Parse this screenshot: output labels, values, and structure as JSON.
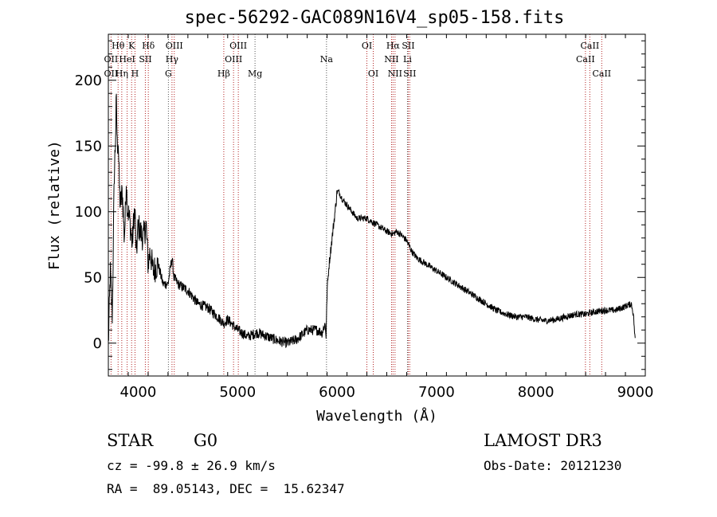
{
  "chart_data": {
    "type": "line",
    "title": "spec-56292-GAC089N16V4_sp05-158.fits",
    "xlabel": "Wavelength (Å)",
    "ylabel": "Flux (relative)",
    "xlim": [
      3700,
      9100
    ],
    "ylim": [
      -25,
      235
    ],
    "xticks": [
      4000,
      5000,
      6000,
      7000,
      8000,
      9000
    ],
    "yticks": [
      0,
      50,
      100,
      150,
      200
    ],
    "series": [
      {
        "name": "flux",
        "x": [
          3700,
          3720,
          3740,
          3760,
          3770,
          3780,
          3790,
          3800,
          3810,
          3820,
          3830,
          3840,
          3850,
          3860,
          3870,
          3880,
          3890,
          3900,
          3920,
          3940,
          3960,
          3970,
          3980,
          4000,
          4020,
          4050,
          4080,
          4100,
          4120,
          4150,
          4200,
          4250,
          4300,
          4340,
          4360,
          4400,
          4500,
          4600,
          4700,
          4800,
          4860,
          4900,
          5000,
          5100,
          5200,
          5300,
          5400,
          5500,
          5600,
          5700,
          5800,
          5850,
          5880,
          5890,
          5900,
          5910,
          5920,
          5950,
          5980,
          6000,
          6020,
          6050,
          6100,
          6150,
          6200,
          6300,
          6400,
          6500,
          6563,
          6600,
          6650,
          6700,
          6720,
          6750,
          6800,
          6900,
          7000,
          7100,
          7200,
          7300,
          7400,
          7500,
          7600,
          7700,
          7800,
          7900,
          8000,
          8100,
          8200,
          8300,
          8400,
          8500,
          8600,
          8700,
          8800,
          8900,
          8960,
          8980,
          9000
        ],
        "y": [
          -2,
          55,
          20,
          130,
          150,
          185,
          150,
          155,
          120,
          105,
          110,
          115,
          100,
          80,
          95,
          125,
          105,
          100,
          90,
          75,
          100,
          95,
          65,
          90,
          85,
          80,
          90,
          60,
          70,
          55,
          60,
          45,
          45,
          65,
          50,
          45,
          40,
          30,
          27,
          20,
          15,
          18,
          10,
          5,
          8,
          5,
          2,
          0,
          3,
          10,
          10,
          8,
          15,
          5,
          40,
          50,
          60,
          80,
          100,
          115,
          115,
          110,
          105,
          100,
          95,
          95,
          90,
          85,
          83,
          85,
          82,
          78,
          75,
          70,
          65,
          60,
          55,
          50,
          45,
          40,
          35,
          30,
          25,
          22,
          20,
          20,
          18,
          17,
          18,
          20,
          22,
          22,
          24,
          25,
          25,
          28,
          30,
          22,
          0
        ]
      }
    ],
    "lines_red": [
      {
        "label": "OII",
        "x": 3727
      },
      {
        "label": "Hθ",
        "x": 3798
      },
      {
        "label": "Hη",
        "x": 3835
      },
      {
        "label": "HeI",
        "x": 3889
      },
      {
        "label": "K",
        "x": 3934
      },
      {
        "label": "H",
        "x": 3968
      },
      {
        "label": "SII",
        "x": 4072
      },
      {
        "label": "Hδ",
        "x": 4102
      },
      {
        "label": "Hγ",
        "x": 4340
      },
      {
        "label": "OIII",
        "x": 4363
      },
      {
        "label": "Hβ",
        "x": 4861
      },
      {
        "label": "OIII",
        "x": 4959
      },
      {
        "label": "OIII",
        "x": 5007
      },
      {
        "label": "OI",
        "x": 6300
      },
      {
        "label": "OI",
        "x": 6364
      },
      {
        "label": "NII",
        "x": 6548
      },
      {
        "label": "Hα",
        "x": 6563
      },
      {
        "label": "NII",
        "x": 6583
      },
      {
        "label": "SII",
        "x": 6716
      },
      {
        "label": "SII",
        "x": 6731
      },
      {
        "label": "CaII",
        "x": 8498
      },
      {
        "label": "CaII",
        "x": 8542
      },
      {
        "label": "CaII",
        "x": 8662
      }
    ],
    "lines_black": [
      {
        "label": "G",
        "x": 4304
      },
      {
        "label": "Mg",
        "x": 5175
      },
      {
        "label": "Na",
        "x": 5894
      },
      {
        "label": "Li",
        "x": 6708
      }
    ],
    "annotations": [
      {
        "text": "Hθ",
        "row": 0,
        "x": 3798
      },
      {
        "text": "K",
        "row": 0,
        "x": 3934
      },
      {
        "text": "Hδ",
        "row": 0,
        "x": 4102
      },
      {
        "text": "OIII",
        "row": 0,
        "x": 4363
      },
      {
        "text": "OIII",
        "row": 0,
        "x": 5007
      },
      {
        "text": "OI",
        "row": 0,
        "x": 6300
      },
      {
        "text": "Hα",
        "row": 0,
        "x": 6563
      },
      {
        "text": "SII",
        "row": 0,
        "x": 6716
      },
      {
        "text": "CaII",
        "row": 0,
        "x": 8542
      },
      {
        "text": "OII",
        "row": 1,
        "x": 3727
      },
      {
        "text": "HeI",
        "row": 1,
        "x": 3889
      },
      {
        "text": "SII",
        "row": 1,
        "x": 4072
      },
      {
        "text": "Hγ",
        "row": 1,
        "x": 4340
      },
      {
        "text": "OIII",
        "row": 1,
        "x": 4959
      },
      {
        "text": "Na",
        "row": 1,
        "x": 5894
      },
      {
        "text": "NII",
        "row": 1,
        "x": 6548
      },
      {
        "text": "Li",
        "row": 1,
        "x": 6708
      },
      {
        "text": "CaII",
        "row": 1,
        "x": 8498
      },
      {
        "text": "OII",
        "row": 2,
        "x": 3727
      },
      {
        "text": "Hη",
        "row": 2,
        "x": 3835
      },
      {
        "text": "H",
        "row": 2,
        "x": 3968
      },
      {
        "text": "G",
        "row": 2,
        "x": 4304
      },
      {
        "text": "Hβ",
        "row": 2,
        "x": 4861
      },
      {
        "text": "Mg",
        "row": 2,
        "x": 5175
      },
      {
        "text": "OI",
        "row": 2,
        "x": 6364
      },
      {
        "text": "NII",
        "row": 2,
        "x": 6583
      },
      {
        "text": "SII",
        "row": 2,
        "x": 6731
      },
      {
        "text": "CaII",
        "row": 2,
        "x": 8662
      }
    ],
    "colors": {
      "line_red": "#b22222",
      "line_black": "#555555",
      "spectrum": "#000000"
    }
  },
  "info": {
    "class_label": "STAR",
    "subclass": "G0",
    "survey": "LAMOST DR3",
    "cz": "cz = -99.8 ± 26.9 km/s",
    "obs_date": "Obs-Date: 20121230",
    "coords": "RA =  89.05143, DEC =  15.62347"
  }
}
